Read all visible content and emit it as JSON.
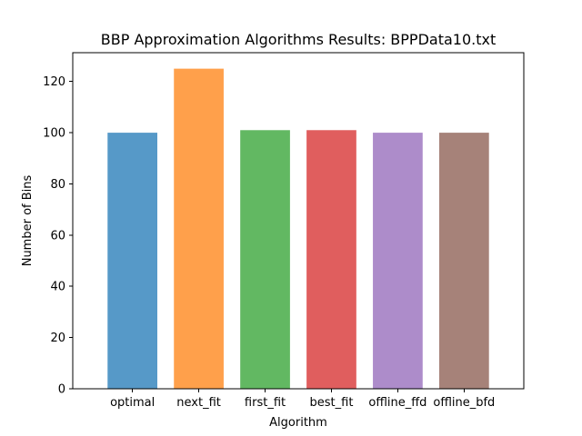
{
  "chart_data": {
    "type": "bar",
    "title": "BBP Approximation Algorithms Results: BPPData10.txt",
    "xlabel": "Algorithm",
    "ylabel": "Number of Bins",
    "categories": [
      "optimal",
      "next_fit",
      "first_fit",
      "best_fit",
      "offline_ffd",
      "offline_bfd"
    ],
    "values": [
      100,
      125,
      101,
      101,
      100,
      100
    ],
    "colors": [
      "#5699c8",
      "#ffa04b",
      "#62b862",
      "#e05e5e",
      "#ad8cca",
      "#a68279"
    ],
    "ylim": [
      0,
      131.25
    ],
    "yticks": [
      0,
      20,
      40,
      60,
      80,
      100,
      120
    ],
    "grid": false,
    "legend": "none"
  }
}
